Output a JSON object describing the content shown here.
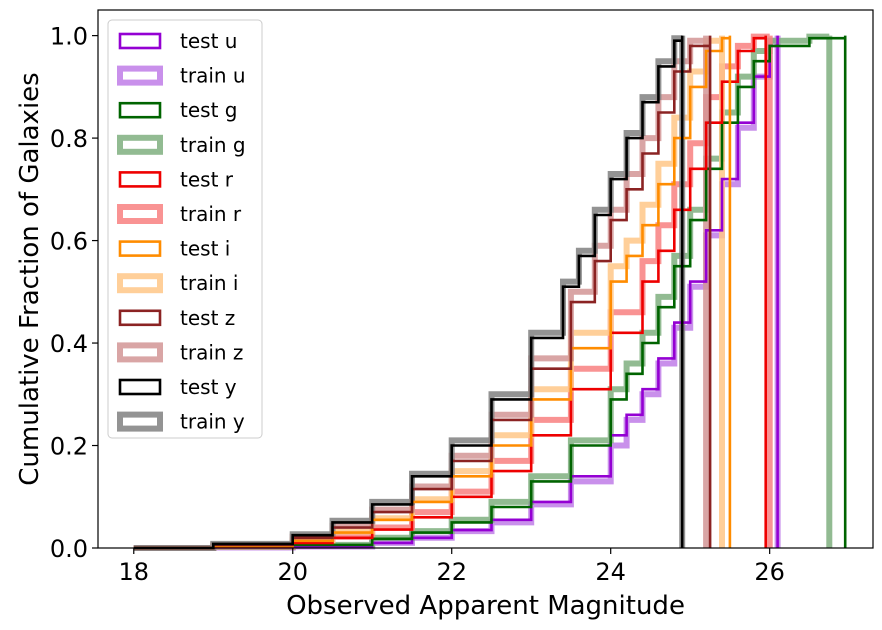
{
  "chart_data": {
    "type": "line",
    "subtype": "cumulative step histogram",
    "xlabel": "Observed Apparent Magnitude",
    "ylabel": "Cumulative Fraction of Galaxies",
    "xlim": [
      17.55,
      27.3
    ],
    "ylim": [
      0,
      1.05
    ],
    "xticks": [
      "18",
      "20",
      "22",
      "24",
      "26"
    ],
    "yticks": [
      "0.0",
      "0.2",
      "0.4",
      "0.6",
      "0.8",
      "1.0"
    ],
    "grid": false,
    "legend_position": "top-left",
    "series": [
      {
        "name": "test u",
        "color": "#9400D3",
        "style": "test",
        "points": [
          [
            18,
            0
          ],
          [
            19,
            0.001
          ],
          [
            20,
            0.003
          ],
          [
            21,
            0.01
          ],
          [
            21.5,
            0.02
          ],
          [
            22,
            0.035
          ],
          [
            22.5,
            0.055
          ],
          [
            23,
            0.09
          ],
          [
            23.5,
            0.14
          ],
          [
            24,
            0.22
          ],
          [
            24.2,
            0.26
          ],
          [
            24.4,
            0.31
          ],
          [
            24.6,
            0.37
          ],
          [
            24.8,
            0.44
          ],
          [
            25,
            0.52
          ],
          [
            25.2,
            0.62
          ],
          [
            25.4,
            0.72
          ],
          [
            25.6,
            0.83
          ],
          [
            25.8,
            0.92
          ],
          [
            26,
            0.98
          ],
          [
            26.1,
            1.0
          ]
        ]
      },
      {
        "name": "train u",
        "color": "#C07DE8",
        "style": "train",
        "points": [
          [
            18,
            0
          ],
          [
            19,
            0.001
          ],
          [
            20,
            0.003
          ],
          [
            21,
            0.01
          ],
          [
            21.5,
            0.02
          ],
          [
            22,
            0.033
          ],
          [
            22.5,
            0.05
          ],
          [
            23,
            0.085
          ],
          [
            23.5,
            0.13
          ],
          [
            24,
            0.2
          ],
          [
            24.2,
            0.25
          ],
          [
            24.4,
            0.3
          ],
          [
            24.6,
            0.36
          ],
          [
            24.8,
            0.43
          ],
          [
            25,
            0.51
          ],
          [
            25.2,
            0.61
          ],
          [
            25.4,
            0.71
          ],
          [
            25.6,
            0.82
          ],
          [
            25.8,
            0.92
          ],
          [
            26,
            0.99
          ],
          [
            26.1,
            1.0
          ]
        ]
      },
      {
        "name": "test g",
        "color": "#006400",
        "style": "test",
        "points": [
          [
            18,
            0
          ],
          [
            19,
            0.002
          ],
          [
            20,
            0.006
          ],
          [
            21,
            0.018
          ],
          [
            21.5,
            0.03
          ],
          [
            22,
            0.05
          ],
          [
            22.5,
            0.08
          ],
          [
            23,
            0.13
          ],
          [
            23.5,
            0.2
          ],
          [
            24,
            0.29
          ],
          [
            24.2,
            0.34
          ],
          [
            24.4,
            0.4
          ],
          [
            24.6,
            0.47
          ],
          [
            24.8,
            0.55
          ],
          [
            25,
            0.64
          ],
          [
            25.2,
            0.74
          ],
          [
            25.4,
            0.83
          ],
          [
            25.6,
            0.9
          ],
          [
            25.8,
            0.95
          ],
          [
            26,
            0.98
          ],
          [
            26.5,
            0.995
          ],
          [
            26.95,
            1.0
          ]
        ]
      },
      {
        "name": "train g",
        "color": "#7FAF7F",
        "style": "train",
        "points": [
          [
            18,
            0
          ],
          [
            19,
            0.002
          ],
          [
            20,
            0.006
          ],
          [
            21,
            0.02
          ],
          [
            21.5,
            0.033
          ],
          [
            22,
            0.055
          ],
          [
            22.5,
            0.09
          ],
          [
            23,
            0.14
          ],
          [
            23.5,
            0.21
          ],
          [
            24,
            0.31
          ],
          [
            24.2,
            0.36
          ],
          [
            24.4,
            0.42
          ],
          [
            24.6,
            0.49
          ],
          [
            24.8,
            0.57
          ],
          [
            25,
            0.66
          ],
          [
            25.2,
            0.76
          ],
          [
            25.4,
            0.85
          ],
          [
            25.6,
            0.92
          ],
          [
            25.8,
            0.97
          ],
          [
            26,
            0.99
          ],
          [
            26.5,
            0.998
          ],
          [
            26.75,
            1.0
          ]
        ]
      },
      {
        "name": "test r",
        "color": "#EE0000",
        "style": "test",
        "points": [
          [
            18,
            0
          ],
          [
            19,
            0.003
          ],
          [
            20,
            0.01
          ],
          [
            20.5,
            0.02
          ],
          [
            21,
            0.036
          ],
          [
            21.5,
            0.06
          ],
          [
            22,
            0.1
          ],
          [
            22.5,
            0.15
          ],
          [
            23,
            0.22
          ],
          [
            23.5,
            0.31
          ],
          [
            24,
            0.42
          ],
          [
            24.4,
            0.52
          ],
          [
            24.6,
            0.58
          ],
          [
            24.8,
            0.66
          ],
          [
            25,
            0.74
          ],
          [
            25.2,
            0.83
          ],
          [
            25.4,
            0.91
          ],
          [
            25.6,
            0.97
          ],
          [
            25.8,
            0.995
          ],
          [
            25.95,
            1.0
          ]
        ]
      },
      {
        "name": "train r",
        "color": "#F88080",
        "style": "train",
        "points": [
          [
            18,
            0
          ],
          [
            19,
            0.003
          ],
          [
            20,
            0.012
          ],
          [
            20.5,
            0.022
          ],
          [
            21,
            0.04
          ],
          [
            21.5,
            0.07
          ],
          [
            22,
            0.11
          ],
          [
            22.5,
            0.17
          ],
          [
            23,
            0.25
          ],
          [
            23.5,
            0.35
          ],
          [
            24,
            0.46
          ],
          [
            24.4,
            0.56
          ],
          [
            24.6,
            0.63
          ],
          [
            24.8,
            0.71
          ],
          [
            25,
            0.79
          ],
          [
            25.2,
            0.88
          ],
          [
            25.4,
            0.94
          ],
          [
            25.6,
            0.98
          ],
          [
            25.8,
            0.998
          ],
          [
            26,
            1.0
          ]
        ]
      },
      {
        "name": "test i",
        "color": "#FF8C00",
        "style": "test",
        "points": [
          [
            18,
            0
          ],
          [
            19,
            0.004
          ],
          [
            20,
            0.014
          ],
          [
            20.5,
            0.03
          ],
          [
            21,
            0.055
          ],
          [
            21.5,
            0.09
          ],
          [
            22,
            0.14
          ],
          [
            22.5,
            0.2
          ],
          [
            23,
            0.29
          ],
          [
            23.5,
            0.39
          ],
          [
            24,
            0.52
          ],
          [
            24.2,
            0.57
          ],
          [
            24.4,
            0.63
          ],
          [
            24.6,
            0.71
          ],
          [
            24.8,
            0.8
          ],
          [
            25,
            0.9
          ],
          [
            25.2,
            0.97
          ],
          [
            25.4,
            0.995
          ],
          [
            25.5,
            1.0
          ]
        ]
      },
      {
        "name": "train i",
        "color": "#FFC787",
        "style": "train",
        "points": [
          [
            18,
            0
          ],
          [
            19,
            0.004
          ],
          [
            20,
            0.015
          ],
          [
            20.5,
            0.032
          ],
          [
            21,
            0.058
          ],
          [
            21.5,
            0.095
          ],
          [
            22,
            0.15
          ],
          [
            22.5,
            0.22
          ],
          [
            23,
            0.31
          ],
          [
            23.5,
            0.42
          ],
          [
            24,
            0.55
          ],
          [
            24.2,
            0.6
          ],
          [
            24.4,
            0.67
          ],
          [
            24.6,
            0.75
          ],
          [
            24.8,
            0.84
          ],
          [
            25,
            0.93
          ],
          [
            25.2,
            0.99
          ],
          [
            25.4,
            1.0
          ]
        ]
      },
      {
        "name": "test z",
        "color": "#8B2323",
        "style": "test",
        "points": [
          [
            18,
            0
          ],
          [
            19,
            0.006
          ],
          [
            20,
            0.02
          ],
          [
            20.5,
            0.04
          ],
          [
            21,
            0.07
          ],
          [
            21.5,
            0.115
          ],
          [
            22,
            0.17
          ],
          [
            22.5,
            0.25
          ],
          [
            23,
            0.35
          ],
          [
            23.5,
            0.48
          ],
          [
            23.8,
            0.56
          ],
          [
            24,
            0.64
          ],
          [
            24.2,
            0.7
          ],
          [
            24.4,
            0.77
          ],
          [
            24.6,
            0.85
          ],
          [
            24.8,
            0.93
          ],
          [
            25,
            0.98
          ],
          [
            25.25,
            1.0
          ]
        ]
      },
      {
        "name": "train z",
        "color": "#D29595",
        "style": "train",
        "points": [
          [
            18,
            0
          ],
          [
            19,
            0.006
          ],
          [
            20,
            0.022
          ],
          [
            20.5,
            0.043
          ],
          [
            21,
            0.075
          ],
          [
            21.5,
            0.12
          ],
          [
            22,
            0.18
          ],
          [
            22.5,
            0.26
          ],
          [
            23,
            0.37
          ],
          [
            23.5,
            0.5
          ],
          [
            23.8,
            0.59
          ],
          [
            24,
            0.66
          ],
          [
            24.2,
            0.73
          ],
          [
            24.4,
            0.8
          ],
          [
            24.6,
            0.88
          ],
          [
            24.8,
            0.95
          ],
          [
            25,
            0.99
          ],
          [
            25.2,
            1.0
          ]
        ]
      },
      {
        "name": "test y",
        "color": "#000000",
        "style": "test",
        "points": [
          [
            18,
            0
          ],
          [
            19,
            0.008
          ],
          [
            20,
            0.025
          ],
          [
            20.5,
            0.05
          ],
          [
            21,
            0.085
          ],
          [
            21.5,
            0.14
          ],
          [
            22,
            0.2
          ],
          [
            22.5,
            0.29
          ],
          [
            23,
            0.41
          ],
          [
            23.4,
            0.51
          ],
          [
            23.6,
            0.57
          ],
          [
            23.8,
            0.65
          ],
          [
            24,
            0.72
          ],
          [
            24.2,
            0.8
          ],
          [
            24.4,
            0.87
          ],
          [
            24.6,
            0.94
          ],
          [
            24.8,
            0.99
          ],
          [
            24.9,
            1.0
          ]
        ]
      },
      {
        "name": "train y",
        "color": "#808080",
        "style": "train",
        "points": [
          [
            18,
            0
          ],
          [
            19,
            0.008
          ],
          [
            20,
            0.027
          ],
          [
            20.5,
            0.053
          ],
          [
            21,
            0.09
          ],
          [
            21.5,
            0.145
          ],
          [
            22,
            0.21
          ],
          [
            22.5,
            0.3
          ],
          [
            23,
            0.42
          ],
          [
            23.4,
            0.52
          ],
          [
            23.6,
            0.58
          ],
          [
            23.8,
            0.66
          ],
          [
            24,
            0.73
          ],
          [
            24.2,
            0.81
          ],
          [
            24.4,
            0.88
          ],
          [
            24.6,
            0.95
          ],
          [
            24.8,
            0.995
          ],
          [
            24.9,
            1.0
          ]
        ]
      }
    ]
  }
}
